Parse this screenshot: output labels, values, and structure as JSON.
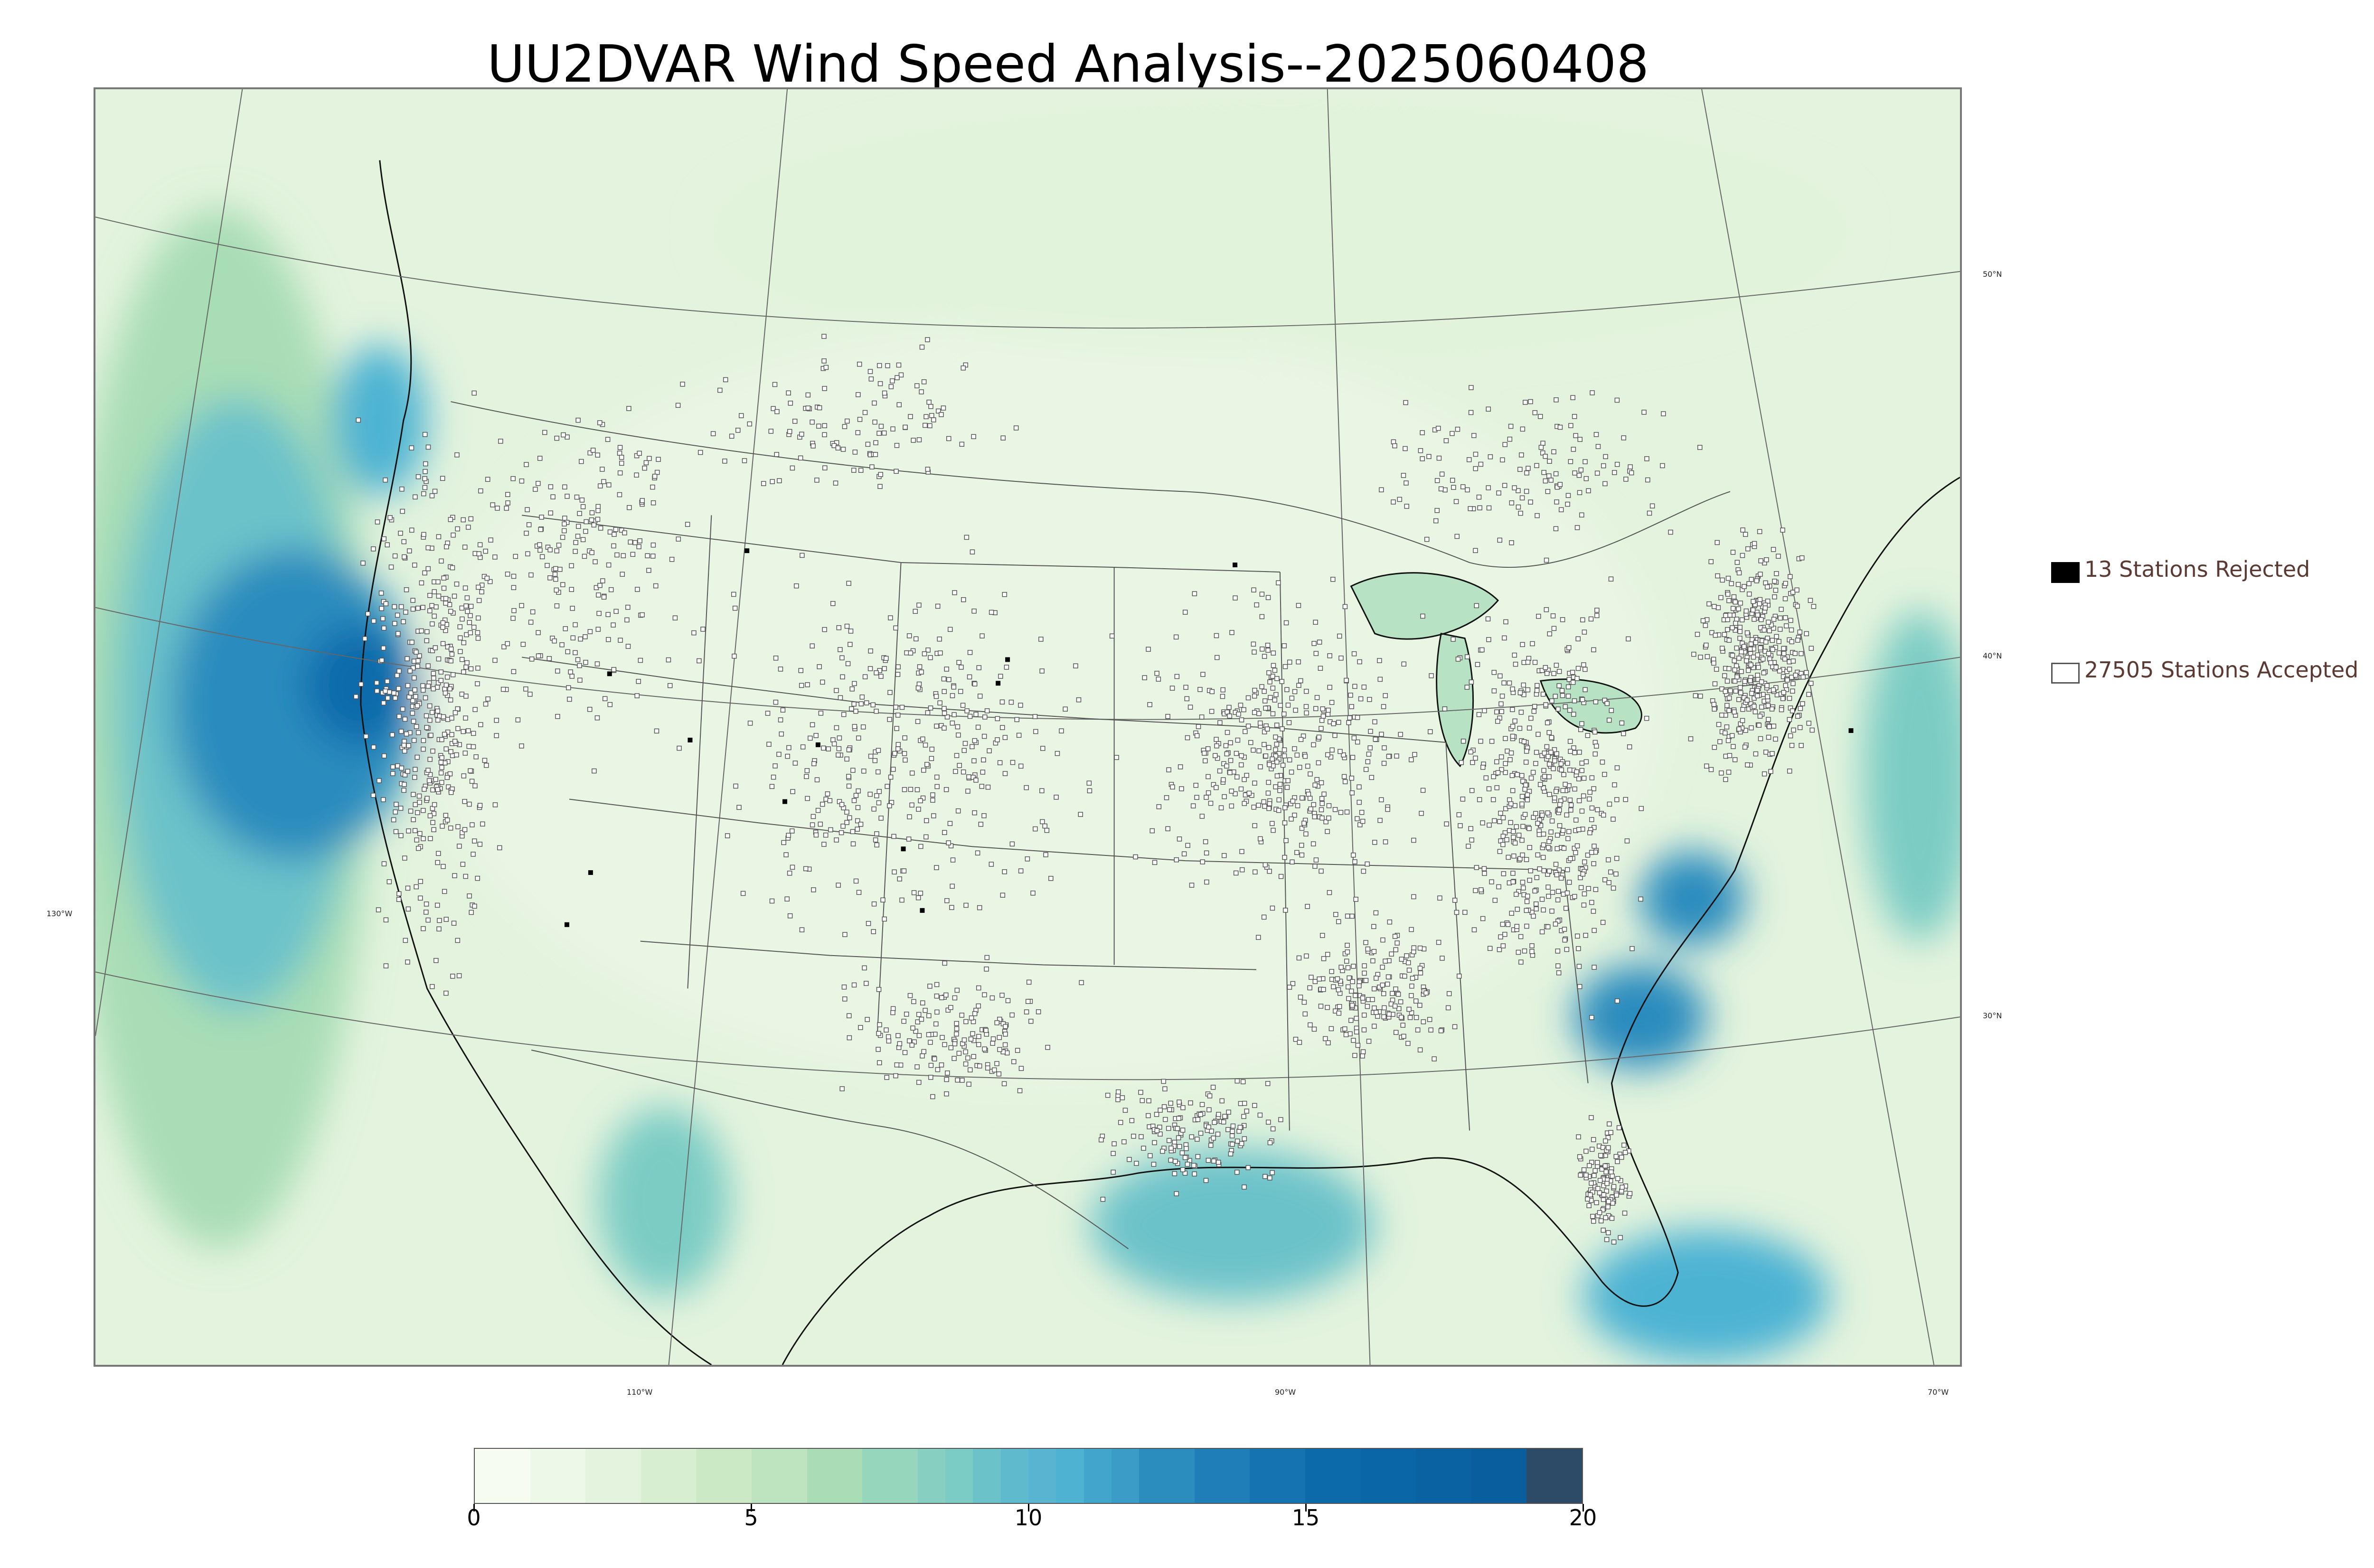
{
  "title": "UU2DVAR Wind Speed Analysis--2025060408",
  "axes": {
    "latitude_labels": [
      "50°N",
      "40°N",
      "30°N"
    ],
    "longitude_labels": [
      "130°W",
      "110°W",
      "90°W",
      "70°W"
    ]
  },
  "legend": [
    {
      "label": "13 Stations Rejected",
      "marker": "filled-black-square",
      "count": 13
    },
    {
      "label": "27505 Stations Accepted",
      "marker": "open-square",
      "count": 27505
    }
  ],
  "colorbar": {
    "min": 0,
    "max": 20,
    "ticks": [
      "0",
      "5",
      "10",
      "15",
      "20"
    ],
    "colormap": "GnBu",
    "levels": [
      {
        "from": 0,
        "to": 1,
        "color": "#f7fcf0"
      },
      {
        "from": 1,
        "to": 2,
        "color": "#eef8e8"
      },
      {
        "from": 2,
        "to": 3,
        "color": "#e3f3dd"
      },
      {
        "from": 3,
        "to": 4,
        "color": "#d7eed0"
      },
      {
        "from": 4,
        "to": 5,
        "color": "#cbe9c4"
      },
      {
        "from": 5,
        "to": 6,
        "color": "#bde4bf"
      },
      {
        "from": 6,
        "to": 7,
        "color": "#a8ddb5"
      },
      {
        "from": 7,
        "to": 8,
        "color": "#96d6bd"
      },
      {
        "from": 8,
        "to": 8.5,
        "color": "#87d0c1"
      },
      {
        "from": 8.5,
        "to": 9,
        "color": "#7bccc4"
      },
      {
        "from": 9,
        "to": 9.5,
        "color": "#6cc2c9"
      },
      {
        "from": 9.5,
        "to": 10,
        "color": "#5fbace"
      },
      {
        "from": 10,
        "to": 10.5,
        "color": "#58b4d1"
      },
      {
        "from": 10.5,
        "to": 11,
        "color": "#4eb3d3"
      },
      {
        "from": 11,
        "to": 11.5,
        "color": "#42a6cc"
      },
      {
        "from": 11.5,
        "to": 12,
        "color": "#3b9cc7"
      },
      {
        "from": 12,
        "to": 13,
        "color": "#2b8cbe"
      },
      {
        "from": 13,
        "to": 14,
        "color": "#1f7db7"
      },
      {
        "from": 14,
        "to": 15,
        "color": "#1573b2"
      },
      {
        "from": 15,
        "to": 16,
        "color": "#0c6aab"
      },
      {
        "from": 16,
        "to": 17,
        "color": "#0b66a7"
      },
      {
        "from": 17,
        "to": 18,
        "color": "#0a62a3"
      },
      {
        "from": 18,
        "to": 19,
        "color": "#095e9e"
      },
      {
        "from": 19,
        "to": 20,
        "color": "#2d4a66"
      }
    ]
  },
  "colors": {
    "land": "#eaf6e6",
    "coastline": "#111111",
    "border": "#444444",
    "station_accepted": "#555555",
    "station_rejected": "#000000",
    "legend_text": "#5a3a32"
  }
}
